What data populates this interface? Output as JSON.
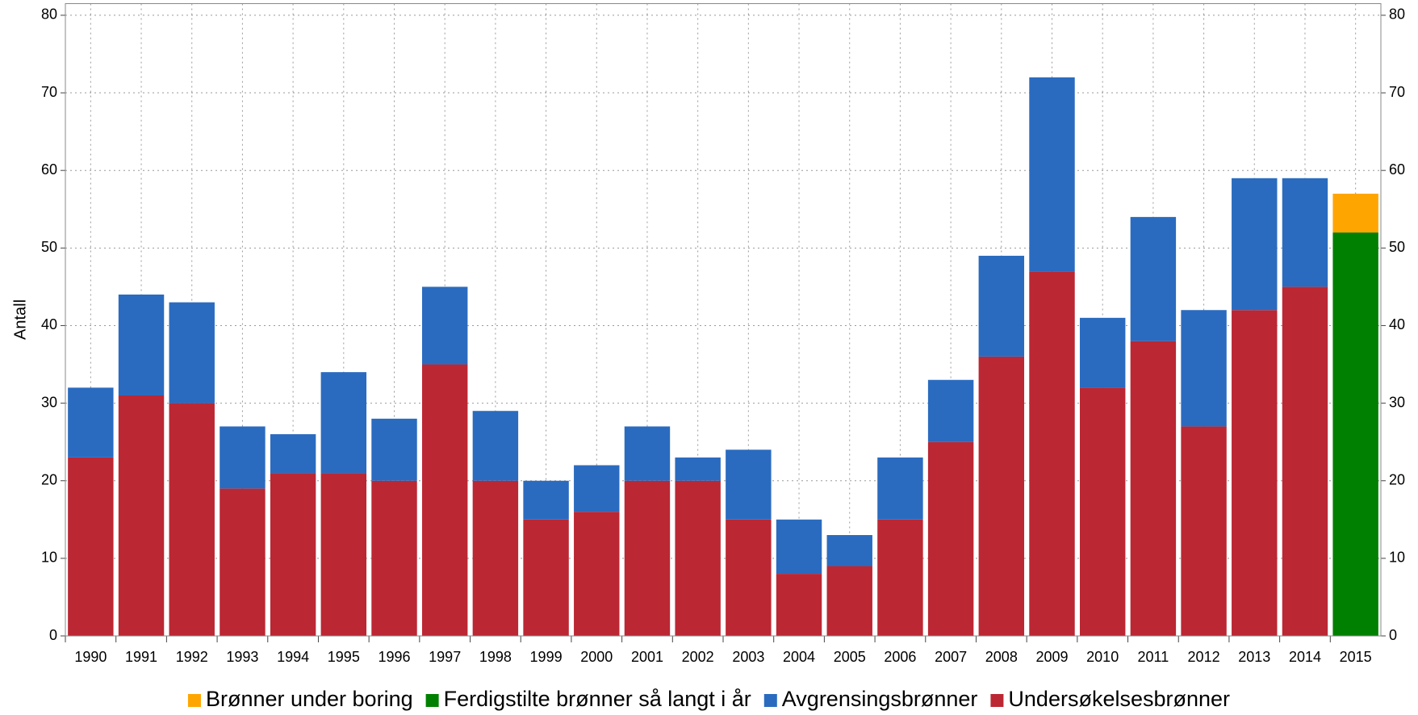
{
  "chart_data": {
    "type": "stacked_bar",
    "y_label": "Antall",
    "categories": [
      "1990",
      "1991",
      "1992",
      "1993",
      "1994",
      "1995",
      "1996",
      "1997",
      "1998",
      "1999",
      "2000",
      "2001",
      "2002",
      "2003",
      "2004",
      "2005",
      "2006",
      "2007",
      "2008",
      "2009",
      "2010",
      "2011",
      "2012",
      "2013",
      "2014",
      "2015"
    ],
    "series": [
      {
        "name": "Brønner under boring",
        "color": "#ffa500",
        "values": [
          null,
          null,
          null,
          null,
          null,
          null,
          null,
          null,
          null,
          null,
          null,
          null,
          null,
          null,
          null,
          null,
          null,
          null,
          null,
          null,
          null,
          null,
          null,
          null,
          null,
          5
        ]
      },
      {
        "name": "Ferdigstilte brønner så langt i år",
        "color": "#008000",
        "values": [
          null,
          null,
          null,
          null,
          null,
          null,
          null,
          null,
          null,
          null,
          null,
          null,
          null,
          null,
          null,
          null,
          null,
          null,
          null,
          null,
          null,
          null,
          null,
          null,
          null,
          52
        ]
      },
      {
        "name": "Avgrensingsbrønner",
        "color": "#2a6bbf",
        "values": [
          9,
          13,
          13,
          8,
          5,
          13,
          8,
          10,
          9,
          5,
          6,
          7,
          3,
          9,
          7,
          4,
          8,
          8,
          13,
          25,
          9,
          16,
          15,
          17,
          14,
          null
        ]
      },
      {
        "name": "Undersøkelsesbrønner",
        "color": "#bb2733",
        "values": [
          23,
          31,
          30,
          19,
          21,
          21,
          20,
          35,
          20,
          15,
          16,
          20,
          20,
          15,
          8,
          9,
          15,
          25,
          36,
          47,
          32,
          38,
          27,
          42,
          45,
          null
        ]
      }
    ],
    "ylim": [
      0,
      81.5
    ],
    "yticks": [
      0,
      10,
      20,
      30,
      40,
      50,
      60,
      70,
      80
    ],
    "y2lim": [
      0,
      81.5
    ],
    "y2ticks": [
      0,
      10,
      20,
      30,
      40,
      50,
      60,
      70,
      80
    ],
    "grid": true,
    "legend": "bottom"
  }
}
